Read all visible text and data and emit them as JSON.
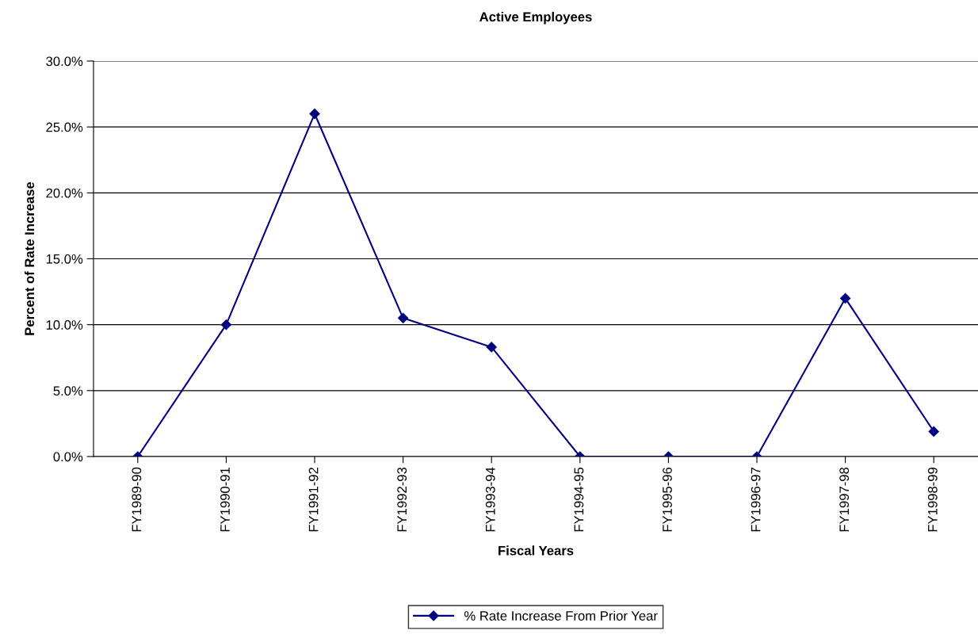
{
  "chart_data": {
    "type": "line",
    "title": "Active Employees",
    "xlabel": "Fiscal Years",
    "ylabel": "Percent of Rate Increase",
    "categories": [
      "FY1989-90",
      "FY1990-91",
      "FY1991-92",
      "FY1992-93",
      "FY1993-94",
      "FY1994-95",
      "FY1995-96",
      "FY1996-97",
      "FY1997-98",
      "FY1998-99"
    ],
    "series": [
      {
        "name": "% Rate Increase From Prior Year",
        "color": "#000080",
        "values": [
          0,
          10.0,
          26.0,
          10.5,
          8.3,
          0,
          0,
          0,
          12.0,
          1.9
        ]
      }
    ],
    "ylim": [
      0,
      30
    ],
    "yticks": [
      {
        "value": 0,
        "label": "0.0%"
      },
      {
        "value": 5,
        "label": "5.0%"
      },
      {
        "value": 10,
        "label": "10.0%"
      },
      {
        "value": 15,
        "label": "15.0%"
      },
      {
        "value": 20,
        "label": "20.0%"
      },
      {
        "value": 25,
        "label": "25.0%"
      },
      {
        "value": 30,
        "label": "30.0%"
      }
    ],
    "grid": "y",
    "legend": "bottom",
    "marker": "diamond",
    "line_style": "solid"
  }
}
